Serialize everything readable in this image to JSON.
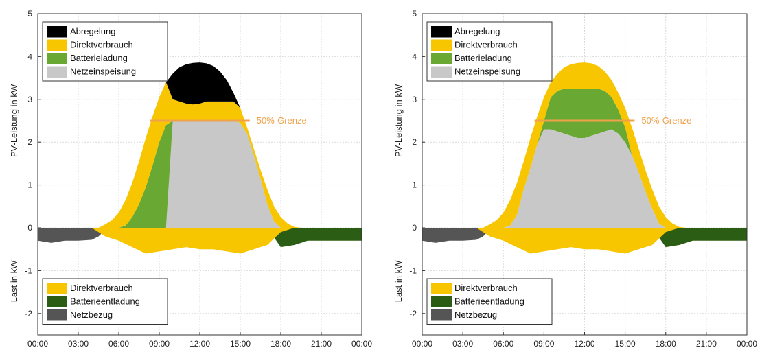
{
  "colors": {
    "Abregelung": "#000000",
    "Direktverbrauch": "#f7c600",
    "Batterieladung": "#6aa834",
    "Netzeinspeisung": "#c8c8c8",
    "Batterieentladung": "#2b5e14",
    "Netzbezug": "#555555",
    "limit": "#f0a24a",
    "grid": "#d9d9d9"
  },
  "chart_data": [
    {
      "type": "area",
      "xlim": [
        0,
        24
      ],
      "ylim": [
        -2.5,
        5
      ],
      "xticks": [
        "00:00",
        "03:00",
        "06:00",
        "09:00",
        "12:00",
        "15:00",
        "18:00",
        "21:00",
        "00:00"
      ],
      "yticks": [
        "-2",
        "-1",
        "0",
        "1",
        "2",
        "3",
        "4",
        "5"
      ],
      "ylabel_top": "PV-Leistung in kW",
      "ylabel_bottom": "Last in kW",
      "legend_top": [
        "Abregelung",
        "Direktverbrauch",
        "Batterieladung",
        "Netzeinspeisung"
      ],
      "legend_bottom": [
        "Direktverbrauch",
        "Batterieentladung",
        "Netzbezug"
      ],
      "limit_label": "50%-Grenze",
      "limit_value": 2.5,
      "limit_range": [
        8.3,
        15.7
      ],
      "pv": {
        "x": [
          4.5,
          5,
          5.5,
          6,
          6.5,
          7,
          7.5,
          8,
          8.5,
          9,
          9.5,
          10,
          10.5,
          11,
          11.5,
          12,
          12.5,
          13,
          13.5,
          14,
          14.5,
          15,
          15.5,
          16,
          16.5,
          17,
          17.5,
          18,
          18.5,
          19,
          19.5
        ],
        "total": [
          0.0,
          0.08,
          0.18,
          0.35,
          0.65,
          1.05,
          1.55,
          2.1,
          2.6,
          3.05,
          3.4,
          3.6,
          3.75,
          3.82,
          3.85,
          3.86,
          3.84,
          3.78,
          3.65,
          3.45,
          3.15,
          2.8,
          2.35,
          1.85,
          1.35,
          0.9,
          0.5,
          0.25,
          0.1,
          0.02,
          0.0
        ],
        "series": [
          {
            "name": "Netzeinspeisung",
            "values": [
              0,
              0,
              0,
              0,
              0,
              0,
              0,
              0,
              0,
              0,
              0,
              2.5,
              2.5,
              2.5,
              2.5,
              2.5,
              2.5,
              2.5,
              2.5,
              2.5,
              2.5,
              2.45,
              2.2,
              1.7,
              1.15,
              0.55,
              0.15,
              0,
              0,
              0,
              0
            ]
          },
          {
            "name": "Batterieladung",
            "values": [
              0,
              0,
              0,
              0,
              0.05,
              0.25,
              0.55,
              0.95,
              1.45,
              2.0,
              2.4,
              0,
              0,
              0,
              0,
              0,
              0,
              0,
              0,
              0,
              0,
              0,
              0,
              0,
              0,
              0,
              0,
              0,
              0,
              0,
              0
            ]
          },
          {
            "name": "Direktverbrauch",
            "values": [
              0,
              0.08,
              0.18,
              0.35,
              0.6,
              0.8,
              1.0,
              1.15,
              1.15,
              1.05,
              1.0,
              0.5,
              0.45,
              0.4,
              0.38,
              0.4,
              0.45,
              0.45,
              0.45,
              0.45,
              0.45,
              0.35,
              0.15,
              0.15,
              0.2,
              0.35,
              0.35,
              0.25,
              0.1,
              0.02,
              0
            ]
          },
          {
            "name": "Abregelung",
            "values": [
              0,
              0,
              0,
              0,
              0,
              0,
              0,
              0,
              0,
              0,
              0,
              0.6,
              0.8,
              0.92,
              0.97,
              0.96,
              0.89,
              0.83,
              0.7,
              0.5,
              0.2,
              0,
              0,
              0,
              0,
              0,
              0,
              0,
              0,
              0,
              0
            ]
          }
        ]
      },
      "load": {
        "x": [
          0,
          1,
          2,
          3,
          4,
          4.5,
          5,
          6,
          7,
          8,
          9,
          10,
          11,
          12,
          13,
          14,
          15,
          16,
          17,
          18,
          19,
          19.5,
          20,
          21,
          22,
          23,
          24
        ],
        "series": [
          {
            "name": "Netzbezug",
            "values": [
              -0.3,
              -0.35,
              -0.3,
              -0.3,
              -0.28,
              -0.2,
              -0.05,
              0,
              0,
              0,
              0,
              0,
              0,
              0,
              0,
              0,
              0,
              0,
              0,
              0,
              0,
              0,
              0,
              0,
              0,
              0,
              0
            ]
          },
          {
            "name": "Batterieentladung",
            "values": [
              0,
              0,
              0,
              0,
              0,
              0,
              0,
              0,
              0,
              0,
              0,
              0,
              0,
              0,
              0,
              0,
              0,
              0,
              0,
              -0.45,
              -0.4,
              -0.35,
              -0.3,
              -0.3,
              -0.3,
              -0.3,
              -0.3
            ]
          },
          {
            "name": "Direktverbrauch",
            "values": [
              0,
              0,
              0,
              0,
              0,
              -0.1,
              -0.2,
              -0.3,
              -0.45,
              -0.6,
              -0.55,
              -0.5,
              -0.45,
              -0.5,
              -0.5,
              -0.55,
              -0.6,
              -0.5,
              -0.4,
              -0.1,
              0,
              0,
              0,
              0,
              0,
              0,
              0
            ]
          }
        ]
      }
    },
    {
      "type": "area",
      "xlim": [
        0,
        24
      ],
      "ylim": [
        -2.5,
        5
      ],
      "xticks": [
        "00:00",
        "03:00",
        "06:00",
        "09:00",
        "12:00",
        "15:00",
        "18:00",
        "21:00",
        "00:00"
      ],
      "yticks": [
        "-2",
        "-1",
        "0",
        "1",
        "2",
        "3",
        "4",
        "5"
      ],
      "ylabel_top": "PV-Leistung in kW",
      "ylabel_bottom": "Last in kW",
      "legend_top": [
        "Abregelung",
        "Direktverbrauch",
        "Batterieladung",
        "Netzeinspeisung"
      ],
      "legend_bottom": [
        "Direktverbrauch",
        "Batterieentladung",
        "Netzbezug"
      ],
      "limit_label": "50%-Grenze",
      "limit_value": 2.5,
      "limit_range": [
        8.3,
        15.7
      ],
      "pv": {
        "x": [
          4.5,
          5,
          5.5,
          6,
          6.5,
          7,
          7.5,
          8,
          8.5,
          9,
          9.5,
          10,
          10.5,
          11,
          11.5,
          12,
          12.5,
          13,
          13.5,
          14,
          14.5,
          15,
          15.5,
          16,
          16.5,
          17,
          17.5,
          18,
          18.5,
          19,
          19.5
        ],
        "total": [
          0.0,
          0.08,
          0.18,
          0.35,
          0.65,
          1.05,
          1.55,
          2.1,
          2.6,
          3.05,
          3.4,
          3.6,
          3.75,
          3.82,
          3.85,
          3.86,
          3.84,
          3.78,
          3.65,
          3.45,
          3.15,
          2.8,
          2.35,
          1.85,
          1.35,
          0.9,
          0.5,
          0.25,
          0.1,
          0.02,
          0.0
        ],
        "series": [
          {
            "name": "Netzeinspeisung",
            "values": [
              0,
              0,
              0,
              0,
              0.05,
              0.3,
              0.9,
              1.4,
              1.95,
              2.3,
              2.3,
              2.25,
              2.2,
              2.15,
              2.1,
              2.1,
              2.15,
              2.2,
              2.25,
              2.3,
              2.2,
              2.0,
              1.7,
              1.3,
              0.85,
              0.45,
              0.1,
              0,
              0,
              0,
              0
            ]
          },
          {
            "name": "Batterieladung",
            "values": [
              0,
              0,
              0,
              0,
              0,
              0,
              0,
              0,
              0,
              0.2,
              0.75,
              0.95,
              1.05,
              1.1,
              1.15,
              1.15,
              1.1,
              1.05,
              0.95,
              0.75,
              0.55,
              0.35,
              0,
              0,
              0,
              0,
              0,
              0,
              0,
              0,
              0
            ]
          },
          {
            "name": "Direktverbrauch",
            "values": [
              0,
              0.08,
              0.18,
              0.35,
              0.6,
              0.75,
              0.65,
              0.7,
              0.65,
              0.55,
              0.35,
              0.4,
              0.5,
              0.57,
              0.6,
              0.61,
              0.59,
              0.53,
              0.45,
              0.4,
              0.4,
              0.45,
              0.65,
              0.55,
              0.5,
              0.45,
              0.4,
              0.25,
              0.1,
              0.02,
              0
            ]
          },
          {
            "name": "Abregelung",
            "values": [
              0,
              0,
              0,
              0,
              0,
              0,
              0,
              0,
              0,
              0,
              0,
              0,
              0,
              0,
              0,
              0,
              0,
              0,
              0,
              0,
              0,
              0,
              0,
              0,
              0,
              0,
              0,
              0,
              0,
              0,
              0
            ]
          }
        ]
      },
      "load": {
        "x": [
          0,
          1,
          2,
          3,
          4,
          4.5,
          5,
          6,
          7,
          8,
          9,
          10,
          11,
          12,
          13,
          14,
          15,
          16,
          17,
          18,
          19,
          19.5,
          20,
          21,
          22,
          23,
          24
        ],
        "series": [
          {
            "name": "Netzbezug",
            "values": [
              -0.3,
              -0.35,
              -0.3,
              -0.3,
              -0.28,
              -0.2,
              -0.05,
              0,
              0,
              0,
              0,
              0,
              0,
              0,
              0,
              0,
              0,
              0,
              0,
              0,
              0,
              0,
              0,
              0,
              0,
              0,
              0
            ]
          },
          {
            "name": "Batterieentladung",
            "values": [
              0,
              0,
              0,
              0,
              0,
              0,
              0,
              0,
              0,
              0,
              0,
              0,
              0,
              0,
              0,
              0,
              0,
              0,
              0,
              -0.45,
              -0.4,
              -0.35,
              -0.3,
              -0.3,
              -0.3,
              -0.3,
              -0.3
            ]
          },
          {
            "name": "Direktverbrauch",
            "values": [
              0,
              0,
              0,
              0,
              0,
              -0.1,
              -0.2,
              -0.3,
              -0.45,
              -0.6,
              -0.55,
              -0.5,
              -0.45,
              -0.5,
              -0.5,
              -0.55,
              -0.6,
              -0.5,
              -0.4,
              -0.1,
              0,
              0,
              0,
              0,
              0,
              0,
              0
            ]
          }
        ]
      }
    }
  ]
}
